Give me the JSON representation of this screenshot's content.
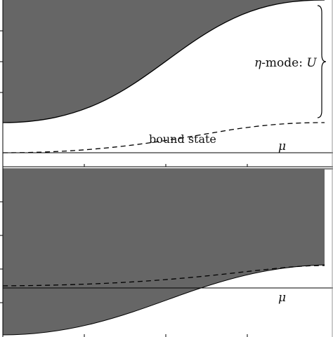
{
  "top_panel": {
    "band_label_prefix": "η",
    "band_label_middle": "-mode: ",
    "band_label_symbol": "U",
    "bound_state_label": "bound state",
    "mu_label": "μ"
  },
  "bottom_panel": {
    "mu_label": "μ"
  },
  "colors": {
    "band_fill": "#666666",
    "stroke": "#000000",
    "background": "#ffffff"
  },
  "icons": {
    "brace": "right-curly-brace"
  }
}
